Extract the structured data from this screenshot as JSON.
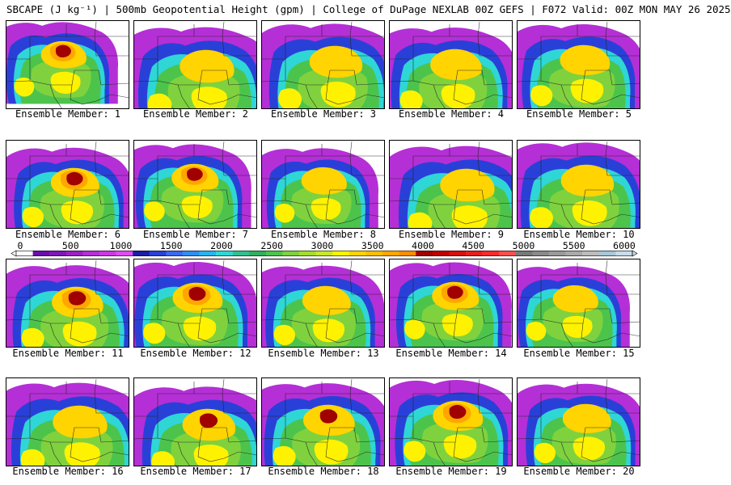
{
  "header": {
    "title": "SBCAPE (J kg⁻¹) | 500mb Geopotential Height (gpm) | College of DuPage NEXLAB 00Z GEFS | F072 Valid: 00Z MON MAY 26 2025"
  },
  "colorbar": {
    "tick_labels": [
      "0",
      "500",
      "1000",
      "1500",
      "2000",
      "2500",
      "3000",
      "3500",
      "4000",
      "4500",
      "5000",
      "5500",
      "6000"
    ],
    "colors": [
      "#ffffff",
      "#6a0dad",
      "#7e17b8",
      "#9b1fc6",
      "#b52fd6",
      "#cc38e4",
      "#e04cf2",
      "#1c1ca8",
      "#2940d8",
      "#3a68ee",
      "#2c8ff2",
      "#27b5ef",
      "#2fd6d6",
      "#30c090",
      "#30b060",
      "#4cc44c",
      "#7fd23e",
      "#a5dd2e",
      "#c8e62a",
      "#fff200",
      "#ffd400",
      "#ffbe00",
      "#ffa600",
      "#ff8c00",
      "#a00000",
      "#c00000",
      "#d81010",
      "#e81e1e",
      "#ff2a2a",
      "#ff4e4e",
      "#787878",
      "#8a8a8a",
      "#9a9a9a",
      "#aaaaaa",
      "#bcbcbc",
      "#a8c8d8",
      "#c8dcea"
    ]
  },
  "panels": [
    {
      "label": "Ensemble Member: 1"
    },
    {
      "label": "Ensemble Member: 2"
    },
    {
      "label": "Ensemble Member: 3"
    },
    {
      "label": "Ensemble Member: 4"
    },
    {
      "label": "Ensemble Member: 5"
    },
    {
      "label": "Ensemble Member: 6"
    },
    {
      "label": "Ensemble Member: 7"
    },
    {
      "label": "Ensemble Member: 8"
    },
    {
      "label": "Ensemble Member: 9"
    },
    {
      "label": "Ensemble Member: 10"
    },
    {
      "label": "Ensemble Member: 11"
    },
    {
      "label": "Ensemble Member: 12"
    },
    {
      "label": "Ensemble Member: 13"
    },
    {
      "label": "Ensemble Member: 14"
    },
    {
      "label": "Ensemble Member: 15"
    },
    {
      "label": "Ensemble Member: 16"
    },
    {
      "label": "Ensemble Member: 17"
    },
    {
      "label": "Ensemble Member: 18"
    },
    {
      "label": "Ensemble Member: 19"
    },
    {
      "label": "Ensemble Member: 20"
    }
  ]
}
